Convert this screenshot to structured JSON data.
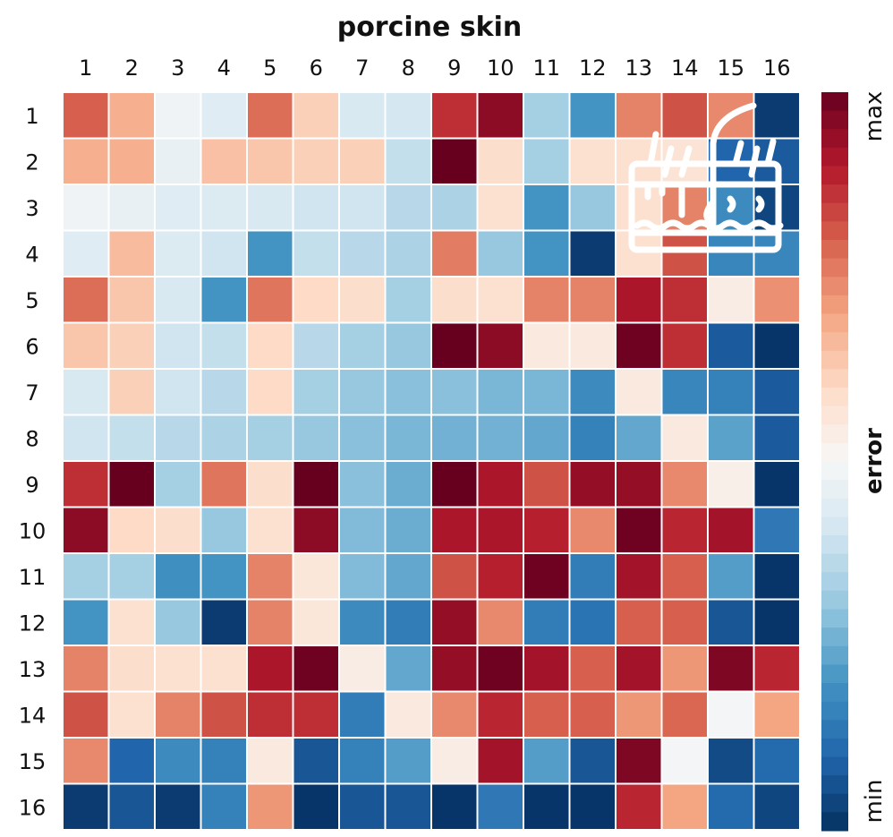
{
  "chart_data": {
    "type": "heatmap",
    "title": "porcine skin",
    "x_tick_labels": [
      "1",
      "2",
      "3",
      "4",
      "5",
      "6",
      "7",
      "8",
      "9",
      "10",
      "11",
      "12",
      "13",
      "14",
      "15",
      "16"
    ],
    "y_tick_labels": [
      "1",
      "2",
      "3",
      "4",
      "5",
      "6",
      "7",
      "8",
      "9",
      "10",
      "11",
      "12",
      "13",
      "14",
      "15",
      "16"
    ],
    "colorbar": {
      "label": "error",
      "max_label": "max",
      "min_label": "min",
      "range": [
        0,
        1
      ]
    },
    "colormap": [
      "#053061",
      "#2166ac",
      "#4393c3",
      "#92c5de",
      "#d1e5f0",
      "#f7f7f7",
      "#fddbc7",
      "#f4a582",
      "#d6604d",
      "#b2182b",
      "#67001f"
    ],
    "values": [
      [
        0.8,
        0.68,
        0.48,
        0.44,
        0.78,
        0.62,
        0.42,
        0.41,
        0.87,
        0.95,
        0.33,
        0.2,
        0.75,
        0.82,
        0.74,
        0.02
      ],
      [
        0.68,
        0.68,
        0.46,
        0.65,
        0.64,
        0.62,
        0.62,
        0.38,
        1.0,
        0.59,
        0.33,
        0.58,
        0.58,
        0.57,
        0.1,
        0.08
      ],
      [
        0.48,
        0.46,
        0.44,
        0.43,
        0.42,
        0.4,
        0.4,
        0.36,
        0.34,
        0.58,
        0.2,
        0.31,
        0.58,
        0.75,
        0.18,
        0.04
      ],
      [
        0.44,
        0.66,
        0.43,
        0.4,
        0.2,
        0.38,
        0.36,
        0.34,
        0.76,
        0.31,
        0.2,
        0.02,
        0.58,
        0.82,
        0.17,
        0.17
      ],
      [
        0.78,
        0.64,
        0.42,
        0.2,
        0.77,
        0.6,
        0.59,
        0.33,
        0.59,
        0.58,
        0.75,
        0.75,
        0.91,
        0.87,
        0.54,
        0.73
      ],
      [
        0.64,
        0.62,
        0.4,
        0.38,
        0.6,
        0.36,
        0.33,
        0.31,
        1.0,
        0.95,
        0.55,
        0.55,
        0.99,
        0.87,
        0.08,
        0.01
      ],
      [
        0.42,
        0.62,
        0.4,
        0.36,
        0.6,
        0.33,
        0.31,
        0.29,
        0.29,
        0.27,
        0.27,
        0.18,
        0.55,
        0.17,
        0.16,
        0.08
      ],
      [
        0.4,
        0.38,
        0.36,
        0.34,
        0.33,
        0.31,
        0.29,
        0.27,
        0.26,
        0.26,
        0.24,
        0.16,
        0.24,
        0.55,
        0.23,
        0.08
      ],
      [
        0.87,
        1.0,
        0.33,
        0.77,
        0.59,
        1.0,
        0.29,
        0.25,
        1.0,
        0.91,
        0.82,
        0.94,
        0.94,
        0.74,
        0.53,
        0.01
      ],
      [
        0.95,
        0.6,
        0.59,
        0.31,
        0.58,
        0.95,
        0.28,
        0.25,
        0.91,
        0.91,
        0.89,
        0.74,
        0.99,
        0.88,
        0.92,
        0.14
      ],
      [
        0.33,
        0.33,
        0.19,
        0.2,
        0.75,
        0.56,
        0.28,
        0.24,
        0.82,
        0.89,
        0.99,
        0.15,
        0.92,
        0.8,
        0.22,
        0.01
      ],
      [
        0.2,
        0.58,
        0.31,
        0.02,
        0.75,
        0.56,
        0.18,
        0.15,
        0.94,
        0.74,
        0.15,
        0.13,
        0.8,
        0.8,
        0.07,
        0.01
      ],
      [
        0.75,
        0.59,
        0.58,
        0.58,
        0.91,
        0.99,
        0.54,
        0.24,
        0.94,
        0.99,
        0.92,
        0.8,
        0.92,
        0.72,
        0.97,
        0.88
      ],
      [
        0.82,
        0.58,
        0.75,
        0.82,
        0.87,
        0.87,
        0.15,
        0.55,
        0.74,
        0.88,
        0.8,
        0.8,
        0.72,
        0.79,
        0.49,
        0.7
      ],
      [
        0.74,
        0.1,
        0.18,
        0.16,
        0.55,
        0.07,
        0.16,
        0.22,
        0.54,
        0.92,
        0.22,
        0.07,
        0.97,
        0.49,
        0.05,
        0.11
      ],
      [
        0.02,
        0.07,
        0.02,
        0.16,
        0.72,
        0.01,
        0.07,
        0.07,
        0.01,
        0.14,
        0.01,
        0.01,
        0.88,
        0.7,
        0.11,
        0.04
      ]
    ],
    "icon": "skin-hair-follicle-icon"
  }
}
